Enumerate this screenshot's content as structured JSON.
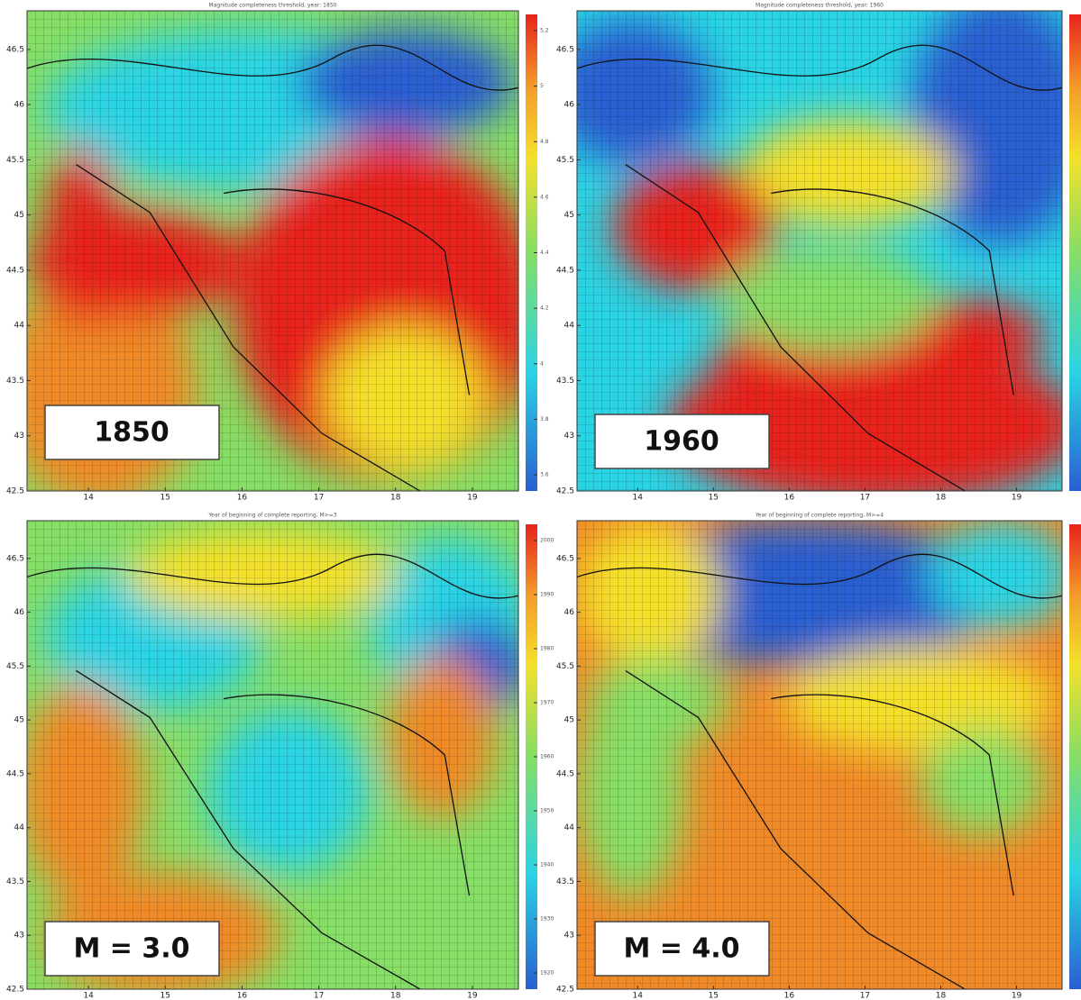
{
  "panels": [
    {
      "title": "Magnitude completeness threshold, year: 1850",
      "label": "1850",
      "yticks": [
        46.5,
        46,
        45.5,
        45,
        44.5,
        44,
        43.5,
        43,
        42.5
      ],
      "xticks": [
        14,
        15,
        16,
        17,
        18,
        19
      ],
      "colorbar_ticks": [
        5.2,
        5,
        4.8,
        4.6,
        4.4,
        4.2,
        4,
        3.8,
        3.6
      ]
    },
    {
      "title": "Magnitude completeness threshold, year: 1960",
      "label": "1960",
      "yticks": [
        46.5,
        46,
        45.5,
        45,
        44.5,
        44,
        43.5,
        43,
        42.5
      ],
      "xticks": [
        14,
        15,
        16,
        17,
        18,
        19
      ]
    },
    {
      "title": "Year of beginning of complete reporting, M>=3",
      "label": "M = 3.0",
      "yticks": [
        46.5,
        46,
        45.5,
        45,
        44.5,
        44,
        43.5,
        43,
        42.5
      ],
      "xticks": [
        14,
        15,
        16,
        17,
        18,
        19
      ],
      "colorbar_ticks": [
        2000,
        1990,
        1980,
        1970,
        1960,
        1950,
        1940,
        1930,
        1920
      ]
    },
    {
      "title": "Year of beginning of complete reporting, M>=4",
      "label": "M = 4.0",
      "yticks": [
        46.5,
        46,
        45.5,
        45,
        44.5,
        44,
        43.5,
        43,
        42.5
      ],
      "xticks": [
        14,
        15,
        16,
        17,
        18,
        19
      ]
    }
  ]
}
